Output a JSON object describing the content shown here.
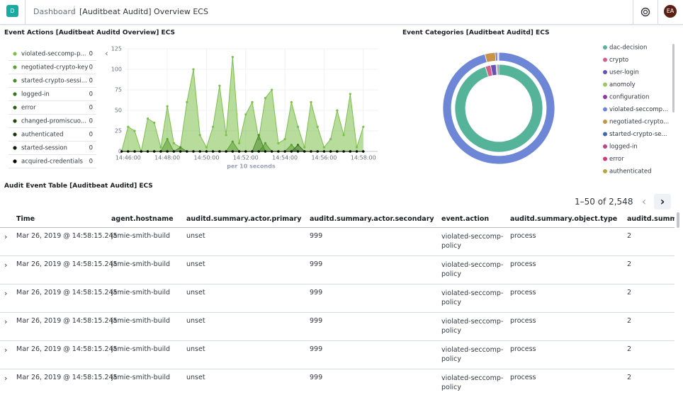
{
  "header": {
    "logo": "D",
    "breadcrumbs": [
      "Dashboard",
      "[Auditbeat Auditd] Overview ECS"
    ],
    "avatar": "EA"
  },
  "chart_data": [
    {
      "type": "area",
      "title": "Event Actions [Auditbeat Auditd Overview] ECS",
      "x_label": "per 10 seconds",
      "x": [
        "14:45:40",
        "14:46:00",
        "14:46:20",
        "14:46:40",
        "14:47:00",
        "14:47:20",
        "14:47:40",
        "14:48:00",
        "14:48:20",
        "14:48:40",
        "14:49:00",
        "14:49:20",
        "14:49:40",
        "14:50:00",
        "14:50:20",
        "14:50:40",
        "14:51:00",
        "14:51:20",
        "14:51:40",
        "14:52:00",
        "14:52:20",
        "14:52:40",
        "14:53:00",
        "14:53:20",
        "14:53:40",
        "14:54:00",
        "14:54:20",
        "14:54:40",
        "14:55:00",
        "14:55:20",
        "14:55:40",
        "14:56:00",
        "14:56:20",
        "14:56:40",
        "14:57:00",
        "14:57:20",
        "14:57:40",
        "14:58:00"
      ],
      "xticks": [
        "14:46:00",
        "14:48:00",
        "14:50:00",
        "14:52:00",
        "14:54:00",
        "14:56:00",
        "14:58:00"
      ],
      "ylim": [
        0,
        125
      ],
      "yticks": [
        0,
        25,
        50,
        75,
        100,
        125
      ],
      "grid": true,
      "series": [
        {
          "name": "violated-seccomp-p...",
          "legend_value": 0,
          "color": "#7cbf4a",
          "values": [
            0,
            30,
            25,
            0,
            40,
            35,
            5,
            55,
            10,
            5,
            60,
            100,
            20,
            5,
            30,
            80,
            20,
            115,
            10,
            45,
            60,
            15,
            65,
            75,
            10,
            15,
            60,
            30,
            5,
            60,
            30,
            5,
            15,
            50,
            20,
            70,
            5,
            30
          ]
        },
        {
          "name": "negotiated-crypto-key",
          "legend_value": 0,
          "color": "#5e9f37",
          "values": [
            0,
            0,
            0,
            0,
            0,
            0,
            0,
            15,
            0,
            0,
            0,
            0,
            0,
            0,
            0,
            0,
            0,
            12,
            0,
            0,
            0,
            0,
            10,
            0,
            0,
            0,
            8,
            0,
            0,
            0,
            0,
            0,
            0,
            0,
            0,
            0,
            0,
            0
          ]
        },
        {
          "name": "started-crypto-sessi...",
          "legend_value": 0,
          "color": "#4c8a2b",
          "values": [
            0,
            0,
            0,
            0,
            0,
            0,
            0,
            0,
            0,
            5,
            0,
            0,
            0,
            0,
            0,
            0,
            0,
            0,
            0,
            0,
            0,
            20,
            0,
            0,
            0,
            0,
            0,
            0,
            0,
            0,
            0,
            0,
            0,
            0,
            0,
            0,
            0,
            0
          ]
        },
        {
          "name": "logged-in",
          "legend_value": 0,
          "color": "#3c7522",
          "values": [
            0,
            0,
            0,
            0,
            0,
            0,
            0,
            0,
            0,
            0,
            0,
            0,
            0,
            0,
            0,
            0,
            0,
            0,
            0,
            0,
            0,
            0,
            0,
            0,
            0,
            0,
            0,
            8,
            0,
            0,
            0,
            0,
            0,
            0,
            0,
            0,
            0,
            0
          ]
        },
        {
          "name": "error",
          "legend_value": 0,
          "color": "#2f5f1b",
          "values": [
            0,
            0,
            0,
            0,
            0,
            0,
            0,
            0,
            0,
            0,
            0,
            0,
            0,
            0,
            0,
            0,
            0,
            0,
            0,
            0,
            0,
            0,
            0,
            0,
            0,
            0,
            0,
            0,
            0,
            0,
            0,
            0,
            0,
            0,
            0,
            0,
            0,
            0
          ]
        },
        {
          "name": "changed-promiscuo...",
          "legend_value": 0,
          "color": "#234a14",
          "values": [
            0,
            0,
            0,
            0,
            0,
            0,
            0,
            0,
            0,
            0,
            0,
            0,
            0,
            0,
            0,
            0,
            0,
            0,
            0,
            0,
            0,
            0,
            0,
            0,
            0,
            0,
            0,
            0,
            0,
            0,
            0,
            0,
            0,
            0,
            0,
            0,
            0,
            0
          ]
        },
        {
          "name": "authenticated",
          "legend_value": 0,
          "color": "#18360d",
          "values": [
            0,
            0,
            0,
            0,
            0,
            0,
            0,
            0,
            0,
            0,
            0,
            0,
            0,
            0,
            0,
            0,
            0,
            0,
            0,
            0,
            0,
            0,
            0,
            0,
            0,
            0,
            0,
            0,
            0,
            0,
            0,
            0,
            0,
            0,
            0,
            0,
            0,
            0
          ]
        },
        {
          "name": "started-session",
          "legend_value": 0,
          "color": "#0e2207",
          "values": [
            0,
            0,
            0,
            0,
            0,
            0,
            0,
            0,
            0,
            0,
            0,
            0,
            0,
            0,
            0,
            0,
            0,
            0,
            0,
            0,
            0,
            0,
            0,
            0,
            0,
            0,
            0,
            0,
            0,
            0,
            0,
            0,
            0,
            0,
            0,
            0,
            0,
            0
          ]
        },
        {
          "name": "acquired-credentials",
          "legend_value": 0,
          "color": "#050d02",
          "values": [
            0,
            0,
            0,
            0,
            0,
            0,
            0,
            0,
            0,
            0,
            0,
            0,
            0,
            0,
            0,
            0,
            0,
            0,
            0,
            0,
            0,
            0,
            0,
            0,
            0,
            0,
            0,
            0,
            0,
            0,
            0,
            0,
            0,
            0,
            0,
            0,
            0,
            0
          ]
        }
      ]
    },
    {
      "type": "donut",
      "title": "Event Categories [Auditbeat Auditd] ECS",
      "categories": [
        "dac-decision",
        "crypto",
        "user-login",
        "anomoly",
        "configuration",
        "violated-seccomp...",
        "negotiated-crypto...",
        "started-crypto-se...",
        "logged-in",
        "error",
        "authenticated"
      ],
      "colors": [
        "#54b399",
        "#d36086",
        "#6a4fb8",
        "#9cc765",
        "#9335a8",
        "#6e86d6",
        "#c9924a",
        "#3f66b5",
        "#b9458b",
        "#d13c6c",
        "#b9a440"
      ],
      "values": [
        95,
        2,
        2,
        0.5,
        0.5,
        96,
        3,
        0.5,
        0.3,
        0.1,
        0.1
      ],
      "ring": [
        1,
        1,
        1,
        1,
        1,
        2,
        2,
        2,
        2,
        2,
        2
      ]
    }
  ],
  "table": {
    "title": "Audit Event Table [Auditbeat Auditd] ECS",
    "pagination": "1–50 of 2,548",
    "columns": [
      "Time",
      "agent.hostname",
      "auditd.summary.actor.primary",
      "auditd.summary.actor.secondary",
      "event.action",
      "auditd.summary.object.type",
      "auditd.summary"
    ],
    "rows": [
      [
        "Mar 26, 2019 @ 14:58:15.245",
        "jamie-smith-build",
        "unset",
        "999",
        "violated-seccomp-policy",
        "process",
        "2"
      ],
      [
        "Mar 26, 2019 @ 14:58:15.245",
        "jamie-smith-build",
        "unset",
        "999",
        "violated-seccomp-policy",
        "process",
        "2"
      ],
      [
        "Mar 26, 2019 @ 14:58:15.245",
        "jamie-smith-build",
        "unset",
        "999",
        "violated-seccomp-policy",
        "process",
        "2"
      ],
      [
        "Mar 26, 2019 @ 14:58:15.245",
        "jamie-smith-build",
        "unset",
        "999",
        "violated-seccomp-policy",
        "process",
        "2"
      ],
      [
        "Mar 26, 2019 @ 14:58:15.245",
        "jamie-smith-build",
        "unset",
        "999",
        "violated-seccomp-policy",
        "process",
        "2"
      ],
      [
        "Mar 26, 2019 @ 14:58:15.245",
        "jamie-smith-build",
        "unset",
        "999",
        "violated-seccomp-policy",
        "process",
        "2"
      ]
    ]
  }
}
